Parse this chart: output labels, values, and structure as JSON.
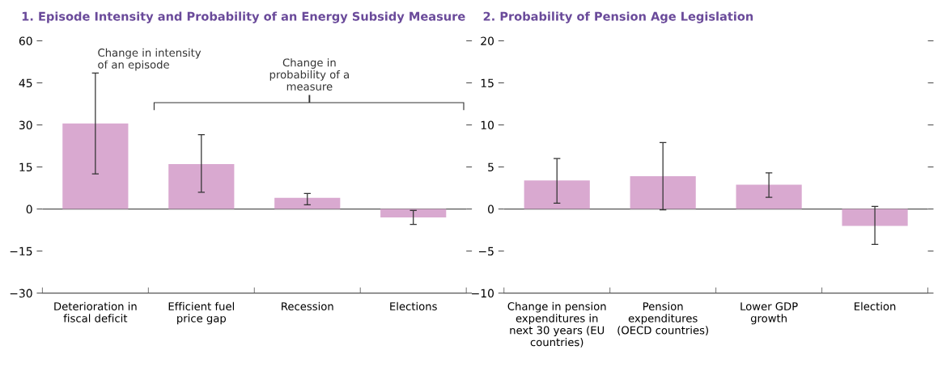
{
  "chart_data": [
    {
      "type": "bar",
      "title": "1. Episode Intensity and Probability of an Energy Subsidy Measure",
      "categories": [
        "Deterioration in\nfiscal deficit",
        "Efficient fuel\nprice gap",
        "Recession",
        "Elections"
      ],
      "values": [
        30.5,
        16,
        4,
        -3
      ],
      "errors": [
        [
          12.5,
          48.5
        ],
        [
          6,
          26.5
        ],
        [
          1.5,
          5.5
        ],
        [
          -5.5,
          -0.5
        ]
      ],
      "color": "#d9a9d0",
      "ylim": [
        -30,
        60
      ],
      "yticks": [
        {
          "value": -30,
          "label": "−30"
        },
        {
          "value": -15,
          "label": "−15"
        },
        0,
        15,
        30,
        45,
        60
      ],
      "annotations": [
        "Change in intensity\nof an episode",
        "Change in\nprobability of a\nmeasure"
      ]
    },
    {
      "type": "bar",
      "title": "2. Probability of Pension Age Legislation",
      "categories": [
        "Change in pension\nexpenditures in\nnext 30 years (EU\ncountries)",
        "Pension\nexpenditures\n(OECD countries)",
        "Lower GDP\ngrowth",
        "Election"
      ],
      "values": [
        3.4,
        3.9,
        2.9,
        -2
      ],
      "errors": [
        [
          0.7,
          6
        ],
        [
          -0.1,
          7.9
        ],
        [
          1.4,
          4.3
        ],
        [
          -4.2,
          0.3
        ]
      ],
      "color": "#d9a9d0",
      "ylim": [
        -10,
        20
      ],
      "yticks": [
        {
          "value": -10,
          "label": "−10"
        },
        {
          "value": -5,
          "label": "−5"
        },
        0,
        5,
        10,
        15,
        20
      ]
    }
  ]
}
